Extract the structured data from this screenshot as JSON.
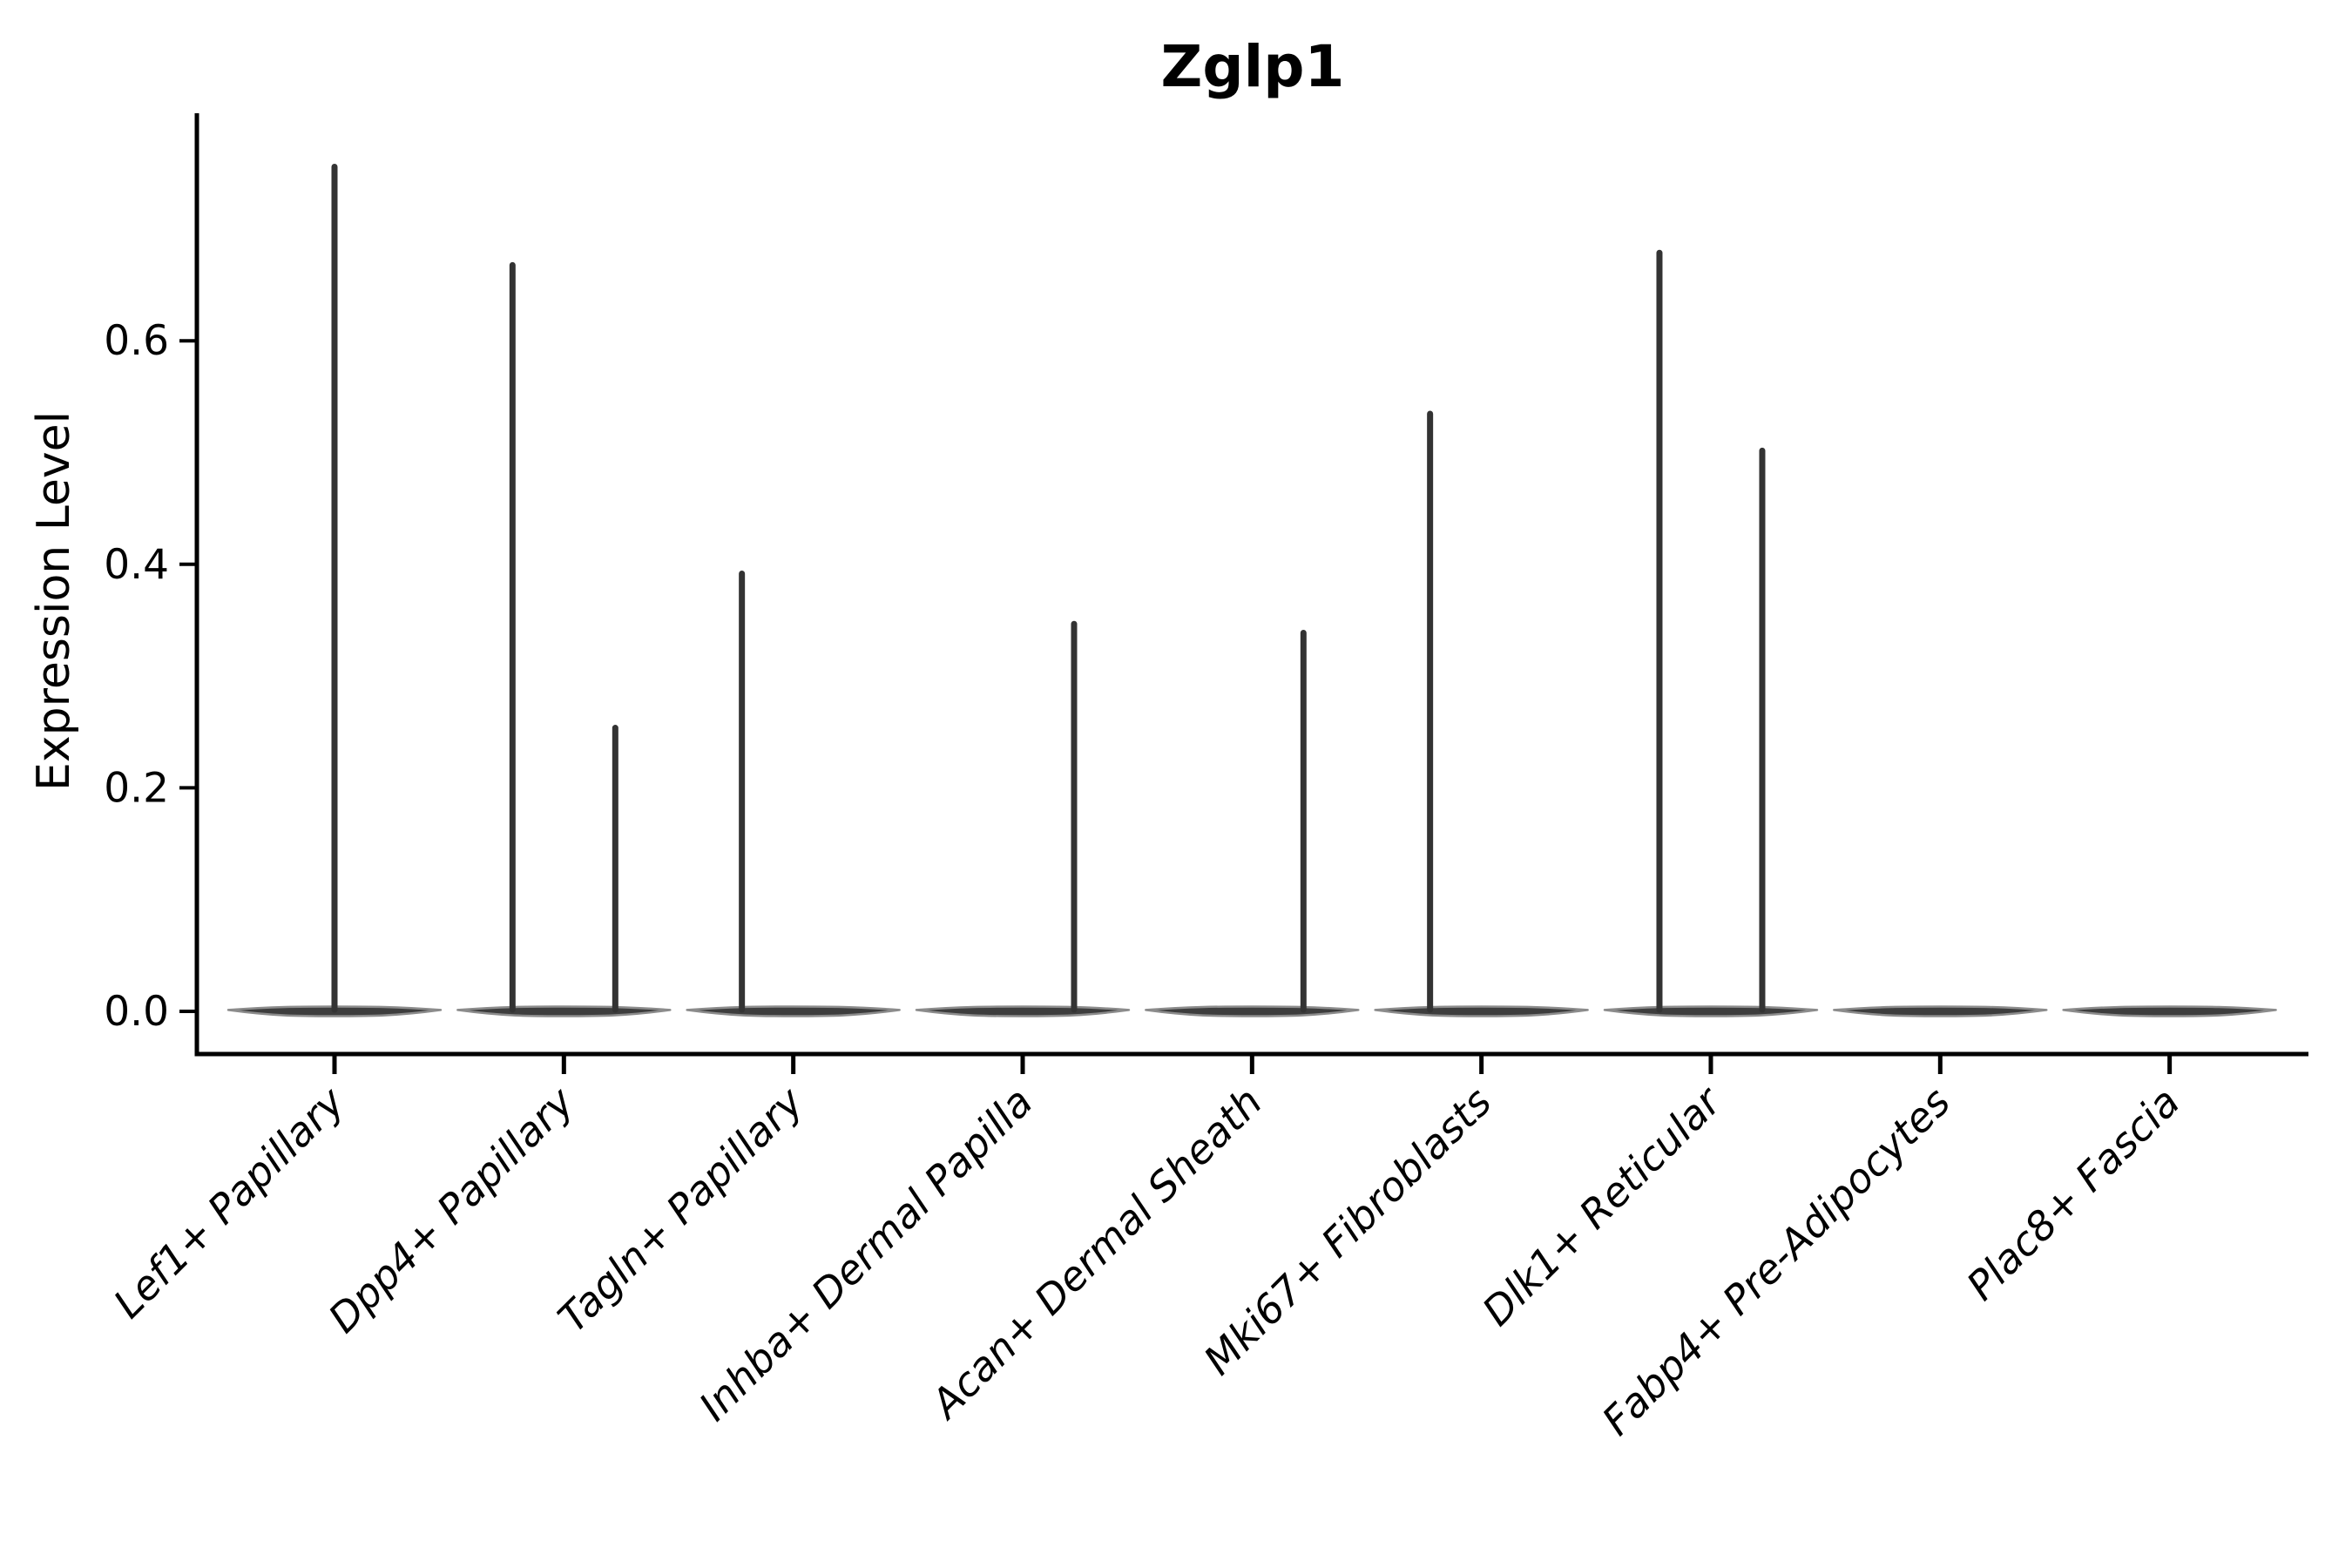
{
  "chart_data": {
    "type": "violin",
    "title": "Zglp1",
    "ylabel": "Expression Level",
    "xlabel": "",
    "yticks": [
      0.0,
      0.2,
      0.4,
      0.6
    ],
    "ylim": [
      -0.04,
      0.8
    ],
    "grid": false,
    "legend": null,
    "ink_color": "#000000",
    "violin_fill": "#3d3d3d",
    "violin_edge": "#8c8c8c",
    "spike_color": "#333333",
    "categories": [
      "Lef1+ Papillary",
      "Dpp4+ Papillary",
      "Tagln+ Papillary",
      "Inhba+ Dermal Papilla",
      "Acan+ Dermal Sheath",
      "Mki67+ Fibroblasts",
      "Dlk1+ Reticular",
      "Fabp4+ Pre-Adipocytes",
      "Plac8+ Fascia"
    ],
    "violins": [
      {
        "category": "Lef1+ Papillary",
        "base_value": 0.0,
        "spikes": [
          {
            "position": "center",
            "max_expression": 0.758
          }
        ]
      },
      {
        "category": "Dpp4+ Papillary",
        "base_value": 0.0,
        "spikes": [
          {
            "position": "left",
            "max_expression": 0.67
          },
          {
            "position": "right",
            "max_expression": 0.256
          }
        ]
      },
      {
        "category": "Tagln+ Papillary",
        "base_value": 0.0,
        "spikes": [
          {
            "position": "left",
            "max_expression": 0.394
          }
        ]
      },
      {
        "category": "Inhba+ Dermal Papilla",
        "base_value": 0.0,
        "spikes": [
          {
            "position": "right",
            "max_expression": 0.349
          }
        ]
      },
      {
        "category": "Acan+ Dermal Sheath",
        "base_value": 0.0,
        "spikes": [
          {
            "position": "right",
            "max_expression": 0.341
          }
        ]
      },
      {
        "category": "Mki67+ Fibroblasts",
        "base_value": 0.0,
        "spikes": [
          {
            "position": "left",
            "max_expression": 0.537
          }
        ]
      },
      {
        "category": "Dlk1+ Reticular",
        "base_value": 0.0,
        "spikes": [
          {
            "position": "left",
            "max_expression": 0.681
          },
          {
            "position": "right",
            "max_expression": 0.504
          }
        ]
      },
      {
        "category": "Fabp4+ Pre-Adipocytes",
        "base_value": 0.0,
        "spikes": []
      },
      {
        "category": "Plac8+ Fascia",
        "base_value": 0.0,
        "spikes": []
      }
    ],
    "layout_hints": {
      "note": "Width-scaled violins: wide flat mass at expression 0 plus thin spike(s) to max; spikes sit at category centre or dodged ± quarter width.",
      "x_labels_rotation_deg": 45,
      "x_labels_style": "italic",
      "spines": [
        "left",
        "bottom"
      ]
    }
  }
}
